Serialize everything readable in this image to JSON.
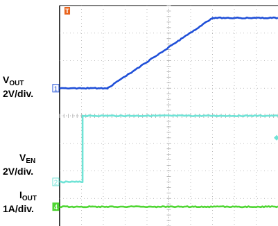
{
  "labels": {
    "vout_name": "V",
    "vout_sub": "OUT",
    "vout_scale": "2V/div.",
    "ven_name": "V",
    "ven_sub": "EN",
    "ven_scale": "2V/div.",
    "iout_name": "I",
    "iout_sub": "OUT",
    "iout_scale": "1A/div."
  },
  "markers": {
    "trigger": "T",
    "ch1": "1",
    "ch2": "2",
    "ch4": "4"
  },
  "colors": {
    "background": "#ffffff",
    "graticule": "#a8a8a8",
    "grid_frame": "#000000",
    "ch1": "#1f4fd8",
    "ch2": "#6fe3d6",
    "ch4": "#4fd633",
    "trigger": "#e8641e"
  },
  "chart_data": {
    "type": "line",
    "title": "",
    "xlabel": "",
    "ylabel": "",
    "grid": true,
    "divisions": {
      "x": 10,
      "y": 8
    },
    "x_range_div": [
      0,
      10
    ],
    "series": [
      {
        "name": "VOUT",
        "channel": "1",
        "color": "#1f4fd8",
        "offset_div": 5.0,
        "points_div": [
          [
            0,
            0
          ],
          [
            2.2,
            0
          ],
          [
            7.0,
            2.55
          ],
          [
            10,
            2.55
          ]
        ]
      },
      {
        "name": "VEN",
        "channel": "2",
        "color": "#6fe3d6",
        "offset_div": 1.6,
        "points_div": [
          [
            0,
            0
          ],
          [
            1.05,
            0
          ],
          [
            1.05,
            2.4
          ],
          [
            10,
            2.4
          ]
        ]
      },
      {
        "name": "IOUT",
        "channel": "4",
        "color": "#4fd633",
        "offset_div": 0.7,
        "points_div": [
          [
            0,
            0
          ],
          [
            10,
            0
          ]
        ]
      }
    ]
  }
}
